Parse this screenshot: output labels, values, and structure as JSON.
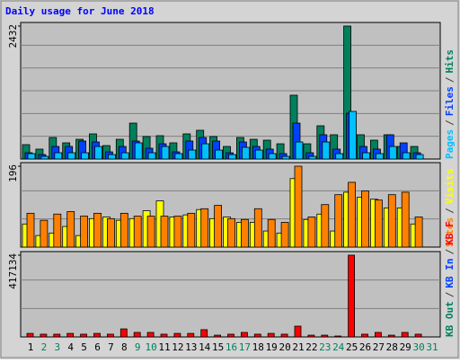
{
  "title": "Daily usage for June 2018",
  "legend_separator": "/",
  "chart_data": [
    {
      "type": "bar",
      "ylim": [
        0,
        2432
      ],
      "yticks": [
        2432
      ],
      "grid_divisions": 6,
      "series": [
        {
          "name": "Hits",
          "color": "#00805c",
          "values": [
            263,
            181,
            394,
            296,
            361,
            460,
            246,
            361,
            657,
            411,
            427,
            296,
            460,
            526,
            411,
            230,
            394,
            361,
            345,
            279,
            1167,
            279,
            608,
            444,
            2432,
            444,
            345,
            444,
            230,
            230,
            0
          ]
        },
        {
          "name": "Files",
          "color": "#0040ff",
          "values": [
            115,
            82,
            230,
            230,
            329,
            312,
            131,
            230,
            329,
            197,
            279,
            131,
            329,
            394,
            329,
            115,
            312,
            230,
            181,
            99,
            657,
            115,
            444,
            181,
            838,
            230,
            181,
            444,
            296,
            115,
            0
          ]
        },
        {
          "name": "Pages",
          "color": "#00c0ff",
          "values": [
            99,
            49,
            115,
            115,
            115,
            230,
            82,
            115,
            296,
            115,
            230,
            99,
            164,
            279,
            164,
            82,
            214,
            164,
            99,
            49,
            312,
            49,
            312,
            99,
            871,
            115,
            99,
            230,
            115,
            82,
            0
          ]
        }
      ]
    },
    {
      "type": "bar",
      "ylim": [
        0,
        196
      ],
      "yticks": [
        196
      ],
      "grid_divisions": 3,
      "series": [
        {
          "name": "Visits",
          "color": "#ffff00",
          "values": [
            56,
            28,
            34,
            50,
            28,
            69,
            73,
            65,
            69,
            88,
            112,
            73,
            78,
            91,
            69,
            73,
            60,
            60,
            39,
            34,
            166,
            67,
            80,
            39,
            133,
            121,
            116,
            95,
            95,
            56,
            0
          ]
        },
        {
          "name": "Sites",
          "color": "#ff8000",
          "values": [
            82,
            65,
            80,
            86,
            75,
            82,
            69,
            82,
            75,
            75,
            75,
            75,
            82,
            93,
            101,
            69,
            67,
            93,
            67,
            60,
            196,
            73,
            103,
            127,
            157,
            136,
            114,
            127,
            133,
            73,
            0
          ]
        }
      ]
    },
    {
      "type": "bar",
      "ylim": [
        0,
        417134
      ],
      "yticks": [
        417134
      ],
      "grid_divisions": 3,
      "categories": [
        "1",
        "2",
        "3",
        "4",
        "5",
        "6",
        "7",
        "8",
        "9",
        "10",
        "11",
        "12",
        "13",
        "14",
        "15",
        "16",
        "17",
        "18",
        "19",
        "20",
        "21",
        "22",
        "23",
        "24",
        "25",
        "26",
        "27",
        "28",
        "29",
        "30",
        "31"
      ],
      "category_colors": [
        "#000000",
        "#00805c",
        "#00805c",
        "#000000",
        "#000000",
        "#000000",
        "#000000",
        "#000000",
        "#00805c",
        "#00805c",
        "#000000",
        "#000000",
        "#000000",
        "#000000",
        "#000000",
        "#00805c",
        "#00805c",
        "#000000",
        "#000000",
        "#000000",
        "#000000",
        "#000000",
        "#00805c",
        "#00805c",
        "#000000",
        "#000000",
        "#000000",
        "#000000",
        "#000000",
        "#00805c",
        "#00805c"
      ],
      "series": [
        {
          "name": "KB F",
          "color": "#ff0000",
          "values": [
            18000,
            14000,
            14000,
            18000,
            14000,
            18000,
            14000,
            41000,
            23000,
            23000,
            14000,
            18000,
            18000,
            37000,
            9000,
            14000,
            23000,
            14000,
            18000,
            14000,
            55000,
            9000,
            9000,
            4600,
            417134,
            14000,
            23000,
            9000,
            23000,
            14000,
            0
          ]
        }
      ],
      "legend_extra": [
        {
          "name": "KB In",
          "color": "#0040ff"
        },
        {
          "name": "KB Out",
          "color": "#00805c"
        }
      ]
    }
  ]
}
